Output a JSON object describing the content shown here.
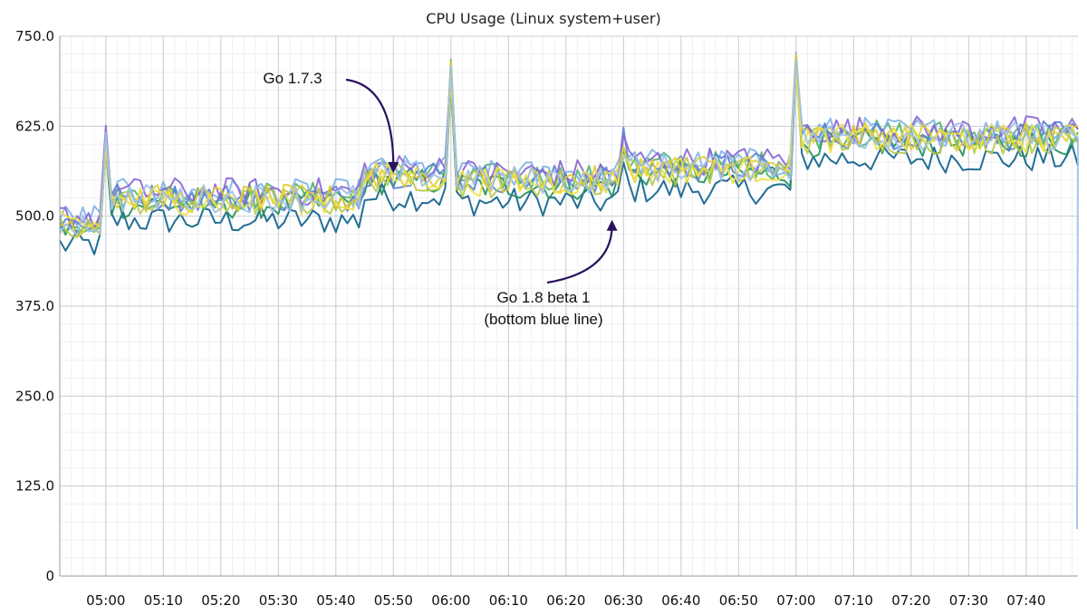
{
  "chart_data": {
    "type": "line",
    "title": "CPU Usage (Linux system+user)",
    "xlabel": "",
    "ylabel": "",
    "ylim": [
      0,
      750
    ],
    "x_range_minutes": [
      "04:52",
      "07:49"
    ],
    "y_ticks": [
      "0",
      "125.0",
      "250.0",
      "375.0",
      "500.0",
      "625.0",
      "750.0"
    ],
    "x_ticks": [
      "05:00",
      "05:10",
      "05:20",
      "05:30",
      "05:40",
      "05:50",
      "06:00",
      "06:10",
      "06:20",
      "06:30",
      "06:40",
      "06:50",
      "07:00",
      "07:10",
      "07:20",
      "07:30",
      "07:40"
    ],
    "grid": true,
    "series_colors": [
      "#0b5e8a",
      "#1e8f5a",
      "#4db36b",
      "#7fb3e6",
      "#5a7fd6",
      "#8a63d2",
      "#b6c94a",
      "#e0cc30",
      "#f0e040",
      "#9fc0e8"
    ],
    "baseline_series": [
      {
        "from": "04:52",
        "to": "04:59",
        "value": 488
      },
      {
        "from": "05:00",
        "to": "05:00",
        "value": 605
      },
      {
        "from": "05:01",
        "to": "05:44",
        "value": 522
      },
      {
        "from": "05:45",
        "to": "05:59",
        "value": 555
      },
      {
        "from": "06:00",
        "to": "06:00",
        "value": 700
      },
      {
        "from": "06:01",
        "to": "06:29",
        "value": 548
      },
      {
        "from": "06:30",
        "to": "06:30",
        "value": 600
      },
      {
        "from": "06:31",
        "to": "06:59",
        "value": 565
      },
      {
        "from": "07:00",
        "to": "07:00",
        "value": 715
      },
      {
        "from": "07:01",
        "to": "07:49",
        "value": 608
      }
    ],
    "series": [
      {
        "offset": -28
      },
      {
        "offset": -6
      },
      {
        "offset": 6
      },
      {
        "offset": 10
      },
      {
        "offset": 4
      },
      {
        "offset": 12
      },
      {
        "offset": -2
      },
      {
        "offset": 2
      },
      {
        "offset": 0
      },
      {
        "offset": 3,
        "final_drop": 65
      }
    ],
    "annotations": [
      {
        "lines": [
          "Go 1.7.3"
        ],
        "x": "05:50",
        "y": 560
      },
      {
        "lines": [
          "Go 1.8 beta 1",
          "(bottom blue line)"
        ],
        "x": "06:28",
        "y": 505
      }
    ]
  }
}
